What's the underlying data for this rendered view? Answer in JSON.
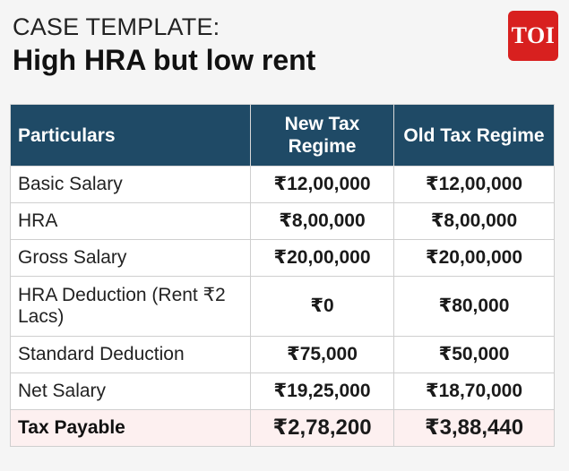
{
  "header": {
    "kicker": "CASE TEMPLATE:",
    "title": "High HRA but low rent"
  },
  "logo": {
    "text": "TOI",
    "color": "#d8201f"
  },
  "colors": {
    "header_bg": "#1f4a66",
    "total_row_bg": "#fdf0f0"
  },
  "table": {
    "headers": [
      "Particulars",
      "New Tax Regime",
      "Old Tax Regime"
    ],
    "rows": [
      {
        "label": "Basic Salary",
        "new": "₹12,00,000",
        "old": "₹12,00,000"
      },
      {
        "label": "HRA",
        "new": "₹8,00,000",
        "old": "₹8,00,000"
      },
      {
        "label": "Gross Salary",
        "new": "₹20,00,000",
        "old": "₹20,00,000"
      },
      {
        "label": "HRA Deduction (Rent ₹2 Lacs)",
        "new": "₹0",
        "old": "₹80,000"
      },
      {
        "label": "Standard Deduction",
        "new": "₹75,000",
        "old": "₹50,000"
      },
      {
        "label": "Net Salary",
        "new": "₹19,25,000",
        "old": "₹18,70,000"
      },
      {
        "label": "Tax Payable",
        "new": "₹2,78,200",
        "old": "₹3,88,440"
      }
    ]
  }
}
